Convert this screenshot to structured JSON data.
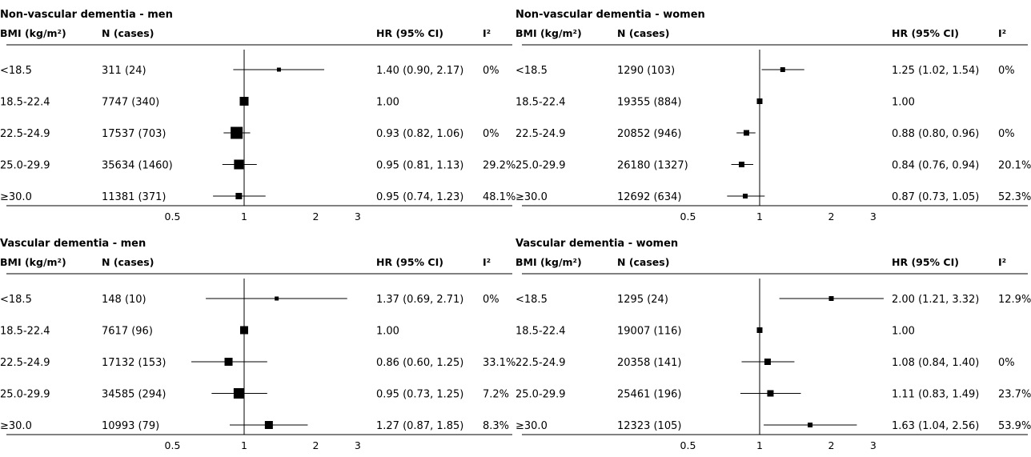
{
  "chart_data": [
    {
      "type": "forest",
      "title": "Non-vascular dementia - men",
      "columns": {
        "bmi": "BMI (kg/m²)",
        "n": "N (cases)",
        "hr": "HR (95% CI)",
        "i2": "I²"
      },
      "x_ticks": [
        0.5,
        1,
        2,
        3
      ],
      "x_scale": "log",
      "rows": [
        {
          "bmi": "<18.5",
          "n": "311 (24)",
          "hr": 1.4,
          "lo": 0.9,
          "hi": 2.17,
          "hr_text": "1.40 (0.90, 2.17)",
          "i2": "0%",
          "box": 5
        },
        {
          "bmi": "18.5-22.4",
          "n": "7747 (340)",
          "hr": 1.0,
          "lo": 1.0,
          "hi": 1.0,
          "hr_text": "1.00",
          "i2": "",
          "box": 11
        },
        {
          "bmi": "22.5-24.9",
          "n": "17537 (703)",
          "hr": 0.93,
          "lo": 0.82,
          "hi": 1.06,
          "hr_text": "0.93 (0.82, 1.06)",
          "i2": "0%",
          "box": 15
        },
        {
          "bmi": "25.0-29.9",
          "n": "35634 (1460)",
          "hr": 0.95,
          "lo": 0.81,
          "hi": 1.13,
          "hr_text": "0.95 (0.81, 1.13)",
          "i2": "29.2%",
          "box": 12
        },
        {
          "bmi": "≥30.0",
          "n": "11381 (371)",
          "hr": 0.95,
          "lo": 0.74,
          "hi": 1.23,
          "hr_text": "0.95 (0.74, 1.23)",
          "i2": "48.1%",
          "box": 8
        }
      ]
    },
    {
      "type": "forest",
      "title": "Non-vascular dementia - women",
      "columns": {
        "bmi": "BMI (kg/m²)",
        "n": "N (cases)",
        "hr": "HR (95% CI)",
        "i2": "I²"
      },
      "x_ticks": [
        0.5,
        1,
        2,
        3
      ],
      "x_scale": "log",
      "rows": [
        {
          "bmi": "<18.5",
          "n": "1290 (103)",
          "hr": 1.25,
          "lo": 1.02,
          "hi": 1.54,
          "hr_text": "1.25 (1.02, 1.54)",
          "i2": "0%",
          "box": 6
        },
        {
          "bmi": "18.5-22.4",
          "n": "19355 (884)",
          "hr": 1.0,
          "lo": 1.0,
          "hi": 1.0,
          "hr_text": "1.00",
          "i2": "",
          "box": 7
        },
        {
          "bmi": "22.5-24.9",
          "n": "20852 (946)",
          "hr": 0.88,
          "lo": 0.8,
          "hi": 0.96,
          "hr_text": "0.88 (0.80, 0.96)",
          "i2": "0%",
          "box": 7
        },
        {
          "bmi": "25.0-29.9",
          "n": "26180 (1327)",
          "hr": 0.84,
          "lo": 0.76,
          "hi": 0.94,
          "hr_text": "0.84 (0.76, 0.94)",
          "i2": "20.1%",
          "box": 7
        },
        {
          "bmi": "≥30.0",
          "n": "12692 (634)",
          "hr": 0.87,
          "lo": 0.73,
          "hi": 1.05,
          "hr_text": "0.87 (0.73, 1.05)",
          "i2": "52.3%",
          "box": 6
        }
      ]
    },
    {
      "type": "forest",
      "title": "Vascular dementia - men",
      "columns": {
        "bmi": "BMI (kg/m²)",
        "n": "N (cases)",
        "hr": "HR (95% CI)",
        "i2": "I²"
      },
      "x_ticks": [
        0.5,
        1,
        2,
        3
      ],
      "x_scale": "log",
      "rows": [
        {
          "bmi": "<18.5",
          "n": "148 (10)",
          "hr": 1.37,
          "lo": 0.69,
          "hi": 2.71,
          "hr_text": "1.37 (0.69, 2.71)",
          "i2": "0%",
          "box": 5
        },
        {
          "bmi": "18.5-22.4",
          "n": "7617 (96)",
          "hr": 1.0,
          "lo": 1.0,
          "hi": 1.0,
          "hr_text": "1.00",
          "i2": "",
          "box": 10
        },
        {
          "bmi": "22.5-24.9",
          "n": "17132 (153)",
          "hr": 0.86,
          "lo": 0.6,
          "hi": 1.25,
          "hr_text": "0.86 (0.60, 1.25)",
          "i2": "33.1%",
          "box": 10
        },
        {
          "bmi": "25.0-29.9",
          "n": "34585 (294)",
          "hr": 0.95,
          "lo": 0.73,
          "hi": 1.25,
          "hr_text": "0.95 (0.73, 1.25)",
          "i2": "7.2%",
          "box": 13
        },
        {
          "bmi": "≥30.0",
          "n": "10993 (79)",
          "hr": 1.27,
          "lo": 0.87,
          "hi": 1.85,
          "hr_text": "1.27 (0.87, 1.85)",
          "i2": "8.3%",
          "box": 10
        }
      ]
    },
    {
      "type": "forest",
      "title": "Vascular dementia - women",
      "columns": {
        "bmi": "BMI (kg/m²)",
        "n": "N (cases)",
        "hr": "HR (95% CI)",
        "i2": "I²"
      },
      "x_ticks": [
        0.5,
        1,
        2,
        3
      ],
      "x_scale": "log",
      "rows": [
        {
          "bmi": "<18.5",
          "n": "1295 (24)",
          "hr": 2.0,
          "lo": 1.21,
          "hi": 3.32,
          "hr_text": "2.00 (1.21, 3.32)",
          "i2": "12.9%",
          "box": 6
        },
        {
          "bmi": "18.5-22.4",
          "n": "19007 (116)",
          "hr": 1.0,
          "lo": 1.0,
          "hi": 1.0,
          "hr_text": "1.00",
          "i2": "",
          "box": 7
        },
        {
          "bmi": "22.5-24.9",
          "n": "20358 (141)",
          "hr": 1.08,
          "lo": 0.84,
          "hi": 1.4,
          "hr_text": "1.08 (0.84, 1.40)",
          "i2": "0%",
          "box": 8
        },
        {
          "bmi": "25.0-29.9",
          "n": "25461 (196)",
          "hr": 1.11,
          "lo": 0.83,
          "hi": 1.49,
          "hr_text": "1.11 (0.83, 1.49)",
          "i2": "23.7%",
          "box": 8
        },
        {
          "bmi": "≥30.0",
          "n": "12323 (105)",
          "hr": 1.63,
          "lo": 1.04,
          "hi": 2.56,
          "hr_text": "1.63 (1.04, 2.56)",
          "i2": "53.9%",
          "box": 6
        }
      ]
    }
  ]
}
